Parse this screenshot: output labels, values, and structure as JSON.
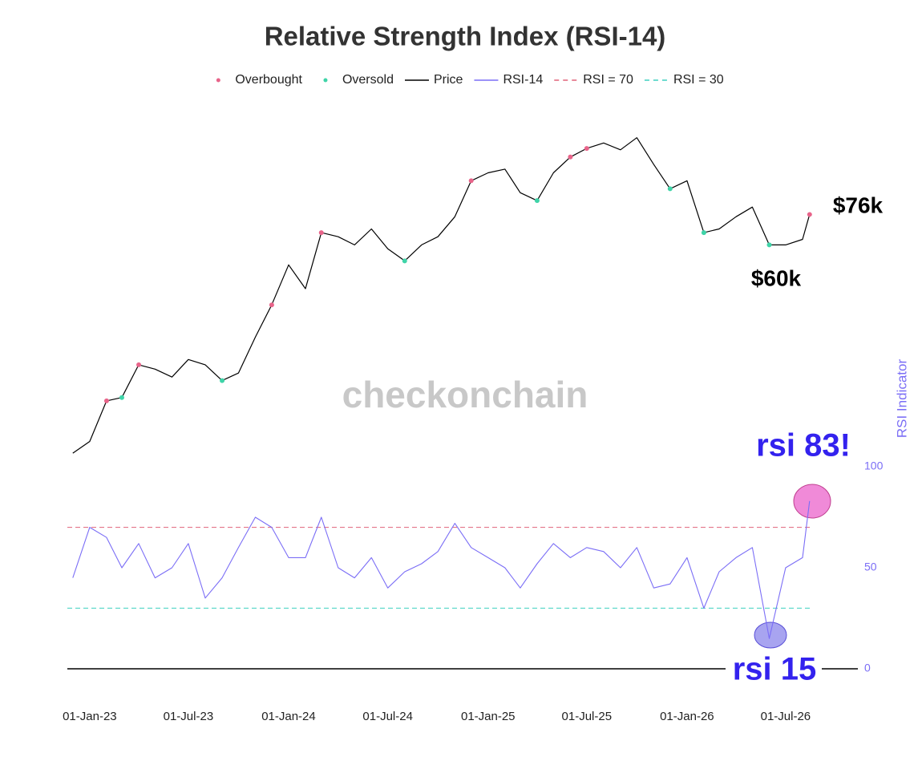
{
  "chart_data": {
    "type": "line",
    "title": "Relative Strength Index (RSI-14)",
    "x": [
      "2022-12-01",
      "2023-01-01",
      "2023-02-01",
      "2023-03-01",
      "2023-04-01",
      "2023-05-01",
      "2023-06-01",
      "2023-07-01",
      "2023-08-01",
      "2023-09-01",
      "2023-10-01",
      "2023-11-01",
      "2023-12-01",
      "2024-01-01",
      "2024-02-01",
      "2024-03-01",
      "2024-04-01",
      "2024-05-01",
      "2024-06-01",
      "2024-07-01",
      "2024-08-01",
      "2024-09-01",
      "2024-10-01",
      "2024-11-01",
      "2024-12-01",
      "2025-01-01",
      "2025-02-01",
      "2025-03-01",
      "2025-04-01",
      "2025-05-01",
      "2025-06-01",
      "2025-07-01",
      "2025-08-01",
      "2025-09-01",
      "2025-10-01",
      "2025-11-01",
      "2025-12-01",
      "2026-01-01",
      "2026-02-01",
      "2026-03-01",
      "2026-04-01",
      "2026-05-01",
      "2026-06-01",
      "2026-07-01",
      "2026-08-01",
      "2026-08-14"
    ],
    "xlim": [
      "2022-11-21",
      "2026-08-29"
    ],
    "xticks": [
      {
        "value": "2023-01-01",
        "label": "01-Jan-23"
      },
      {
        "value": "2023-07-01",
        "label": "01-Jul-23"
      },
      {
        "value": "2024-01-01",
        "label": "01-Jan-24"
      },
      {
        "value": "2024-07-01",
        "label": "01-Jul-24"
      },
      {
        "value": "2025-01-01",
        "label": "01-Jan-25"
      },
      {
        "value": "2025-07-01",
        "label": "01-Jul-25"
      },
      {
        "value": "2026-01-01",
        "label": "01-Jan-26"
      },
      {
        "value": "2026-07-01",
        "label": "01-Jul-26"
      }
    ],
    "ylim": [
      15000,
      140000
    ],
    "log_y": true,
    "y2lim": [
      0,
      100
    ],
    "y2ticks": [
      0,
      50,
      100
    ],
    "y2label": "RSI Indicator",
    "series": [
      {
        "name": "Price",
        "color": "#000000",
        "values": [
          17000,
          18300,
          23600,
          24100,
          29600,
          28800,
          27400,
          30600,
          29600,
          26800,
          28100,
          35200,
          43100,
          55400,
          47700,
          67800,
          66100,
          62800,
          69400,
          61300,
          56800,
          62800,
          66100,
          74900,
          93900,
          98700,
          101000,
          87100,
          82900,
          98700,
          109000,
          115000,
          119000,
          114000,
          123000,
          104000,
          89300,
          93900,
          67800,
          69400,
          74900,
          79600,
          62800,
          62800,
          65000,
          76000
        ]
      },
      {
        "name": "RSI-14",
        "color": "#7b6ef6",
        "axis": "y2",
        "values": [
          45,
          70,
          65,
          50,
          62,
          45,
          50,
          62,
          35,
          45,
          60,
          75,
          70,
          55,
          55,
          75,
          50,
          45,
          55,
          40,
          48,
          52,
          58,
          72,
          60,
          55,
          50,
          40,
          52,
          62,
          55,
          60,
          58,
          50,
          60,
          40,
          42,
          55,
          30,
          48,
          55,
          60,
          15,
          50,
          55,
          83
        ]
      }
    ],
    "markers": [
      {
        "name": "Overbought",
        "type": "scatter",
        "color": "#e8648a",
        "x": [
          "2023-02-01",
          "2023-04-01",
          "2023-12-01",
          "2024-03-01",
          "2024-12-01",
          "2025-06-01",
          "2025-07-01",
          "2026-08-14"
        ],
        "values": [
          23600,
          29600,
          43100,
          67800,
          93900,
          109000,
          115000,
          76000
        ]
      },
      {
        "name": "Oversold",
        "type": "scatter",
        "color": "#3fd4a8",
        "x": [
          "2023-03-01",
          "2023-09-01",
          "2024-08-01",
          "2025-04-01",
          "2025-12-01",
          "2026-02-01",
          "2026-06-01"
        ],
        "values": [
          24100,
          26800,
          56800,
          82900,
          89300,
          67800,
          62800
        ]
      }
    ],
    "hlines": [
      {
        "name": "RSI = 70",
        "value": 70,
        "color": "#e0637a",
        "axis": "y2"
      },
      {
        "name": "RSI = 30",
        "value": 30,
        "color": "#3fd0c0",
        "axis": "y2"
      }
    ],
    "annotations": [
      "$76k",
      "$60k",
      "rsi 83!",
      "rsi 15"
    ],
    "watermark": "checkonchain"
  }
}
